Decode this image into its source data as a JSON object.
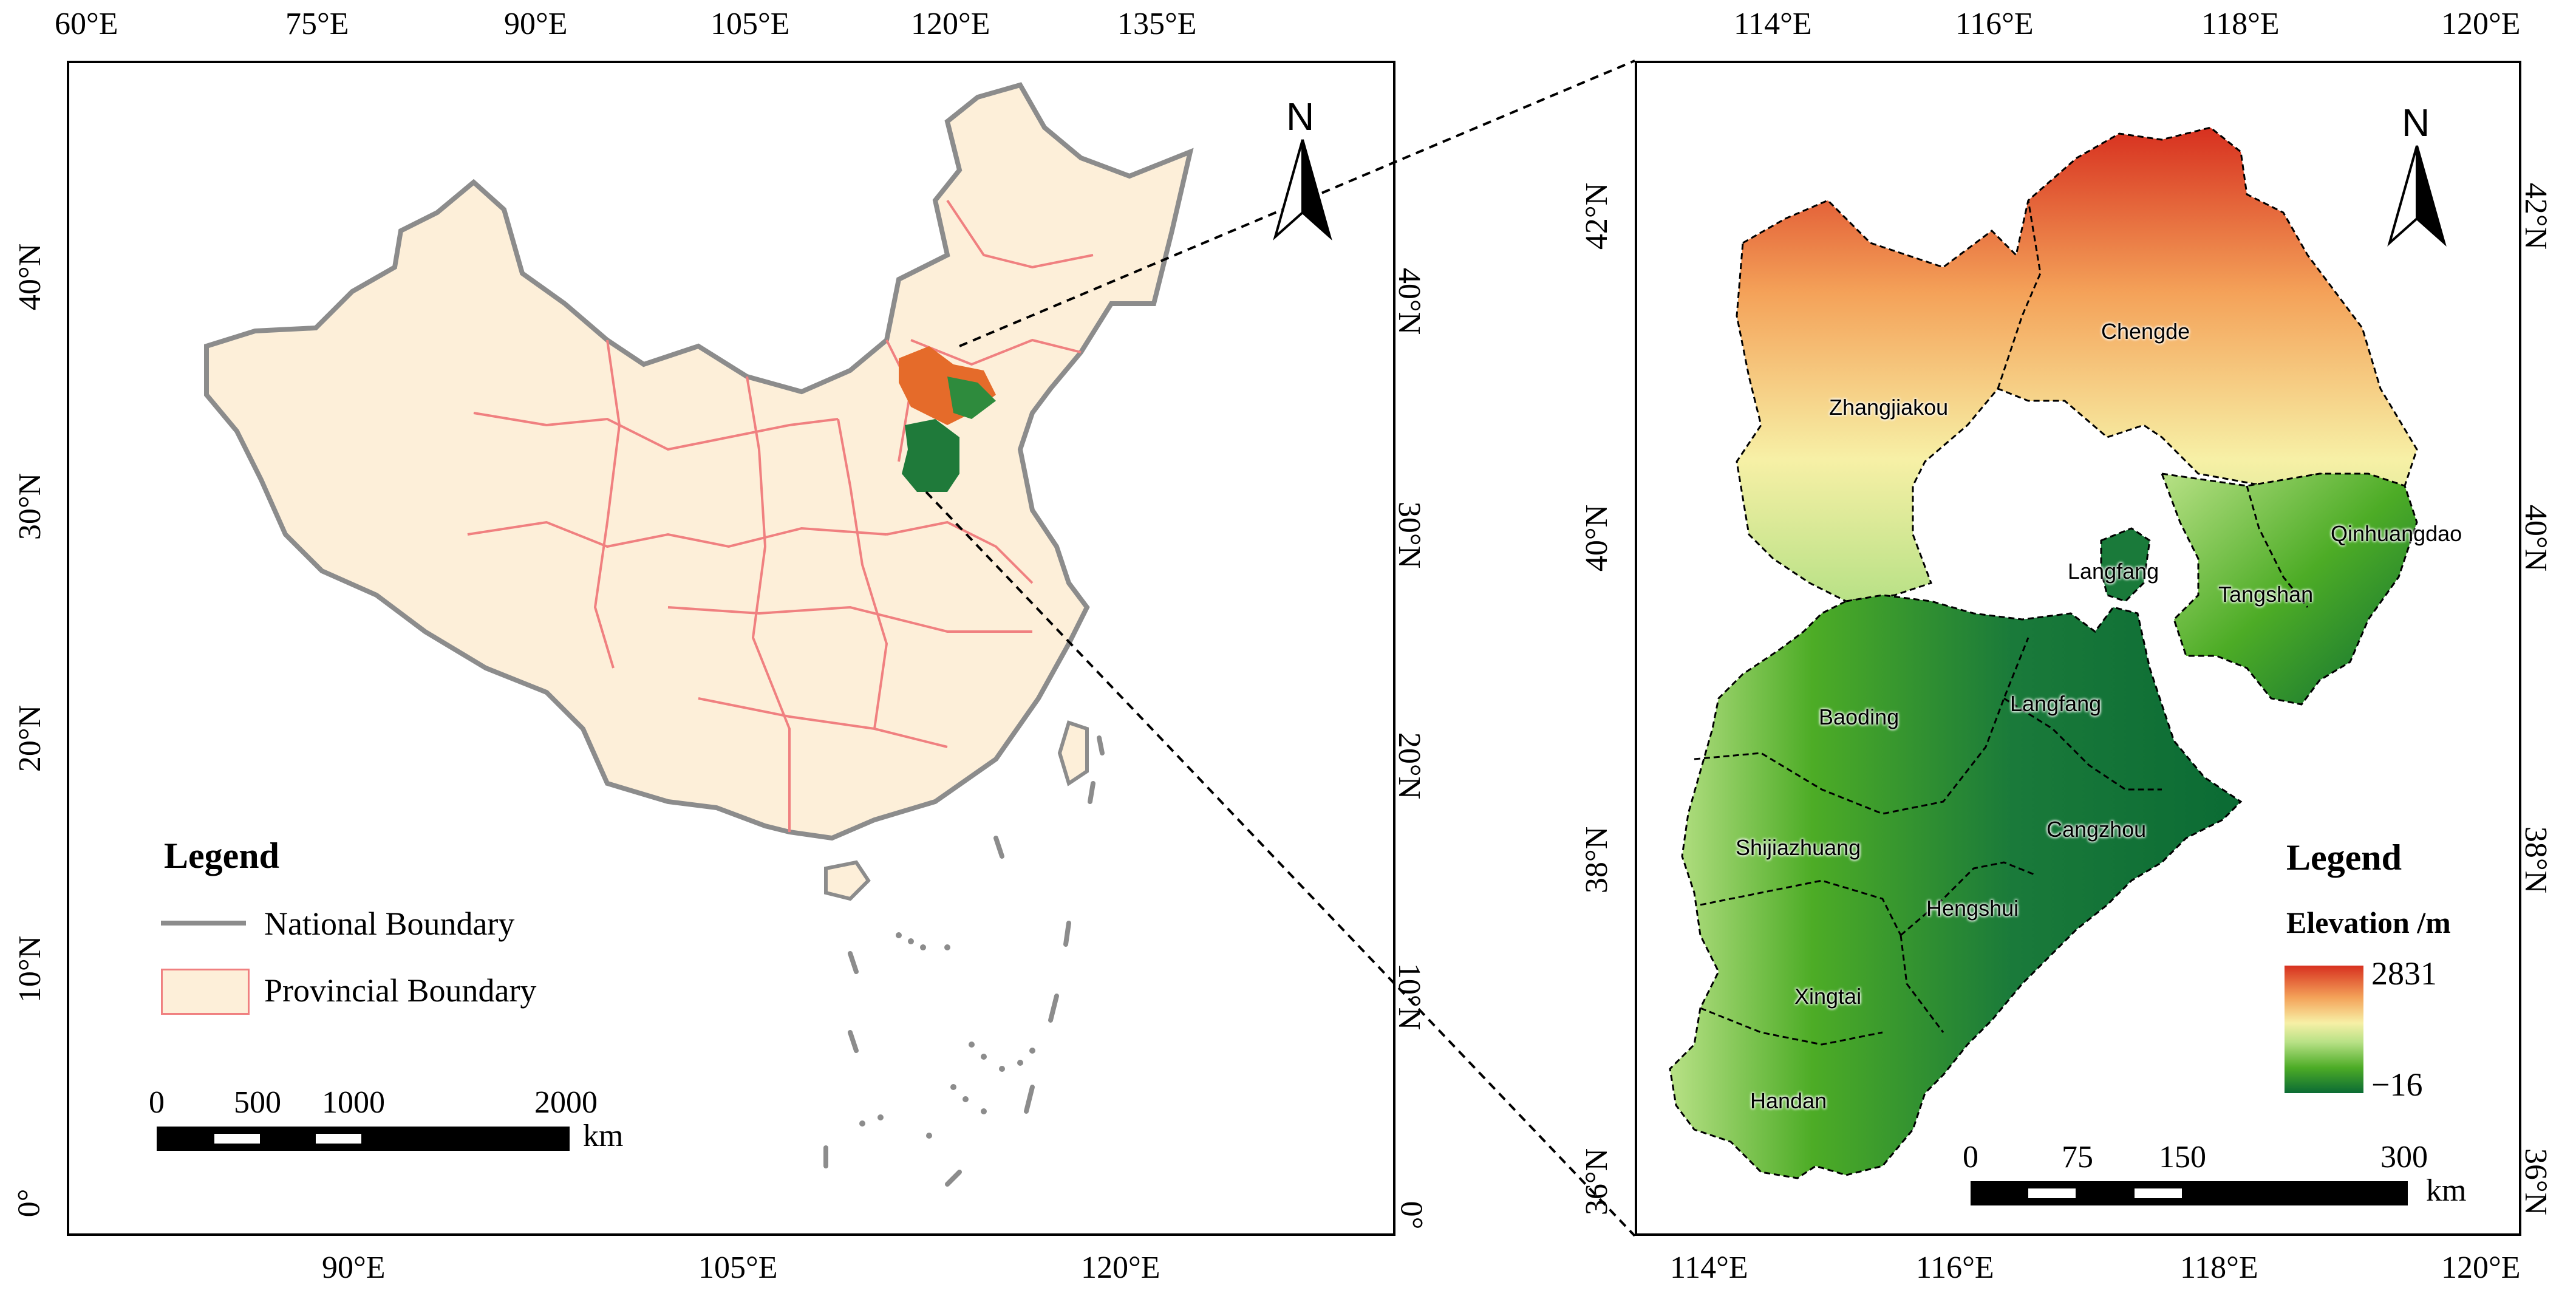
{
  "left_map": {
    "top_ticks": [
      "60°E",
      "75°E",
      "90°E",
      "105°E",
      "120°E",
      "135°E"
    ],
    "bottom_ticks": [
      "90°E",
      "105°E",
      "120°E"
    ],
    "left_ticks": [
      "40°N",
      "30°N",
      "20°N",
      "10°N",
      "0°"
    ],
    "right_ticks": [
      "40°N",
      "30°N",
      "20°N",
      "10°N",
      "0°"
    ],
    "north_label": "N",
    "legend": {
      "title": "Legend",
      "items": [
        {
          "label": "National Boundary",
          "color": "#8c8c8c"
        },
        {
          "label": "Provincial Boundary",
          "color": "#f08080",
          "fill": "#fdefd9"
        }
      ]
    },
    "scale_bar": {
      "labels": [
        "0",
        "500",
        "1000",
        "2000"
      ],
      "unit": "km"
    }
  },
  "right_map": {
    "top_ticks": [
      "114°E",
      "116°E",
      "118°E",
      "120°E"
    ],
    "bottom_ticks": [
      "114°E",
      "116°E",
      "118°E",
      "120°E"
    ],
    "left_ticks": [
      "42°N",
      "40°N",
      "38°N",
      "36°N"
    ],
    "right_ticks": [
      "42°N",
      "40°N",
      "38°N",
      "36°N"
    ],
    "north_label": "N",
    "cities": [
      "Zhangjiakou",
      "Chengde",
      "Qinhuangdao",
      "Langfang",
      "Tangshan",
      "Baoding",
      "Langfang",
      "Cangzhou",
      "Shijiazhuang",
      "Hengshui",
      "Xingtai",
      "Handan"
    ],
    "legend": {
      "title": "Legend",
      "subtitle": "Elevation /m",
      "max": "2831",
      "min": "−16",
      "gradient": [
        "#d7301f",
        "#f4a259",
        "#f7f0a6",
        "#b8e186",
        "#4dac26",
        "#1a7a3a",
        "#0b6b34"
      ]
    },
    "scale_bar": {
      "labels": [
        "0",
        "75",
        "150",
        "300"
      ],
      "unit": "km"
    }
  }
}
